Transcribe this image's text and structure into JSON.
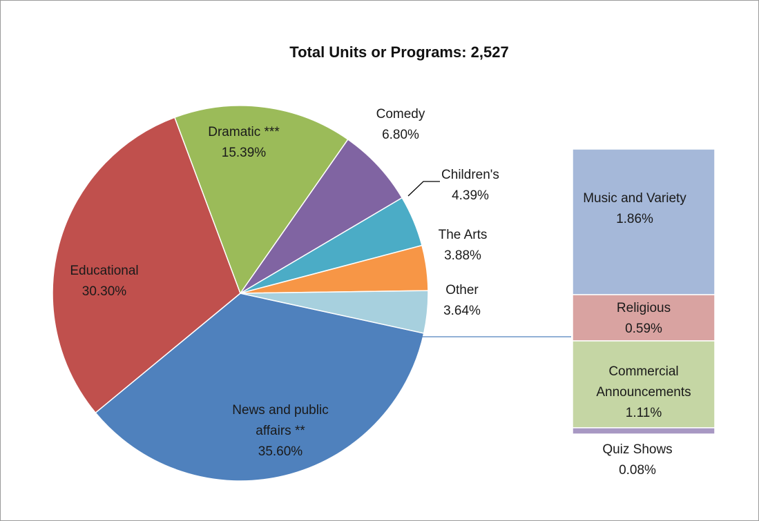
{
  "chart_data": {
    "type": "pie",
    "title": "Total Units or Programs: 2,527",
    "slices": [
      {
        "label": "News and public affairs **",
        "value": 35.6,
        "display": "35.60%",
        "color": "#4F81BD"
      },
      {
        "label": "Educational",
        "value": 30.3,
        "display": "30.30%",
        "color": "#C0504D"
      },
      {
        "label": "Dramatic ***",
        "value": 15.39,
        "display": "15.39%",
        "color": "#9BBB59"
      },
      {
        "label": "Comedy",
        "value": 6.8,
        "display": "6.80%",
        "color": "#8064A2"
      },
      {
        "label": "Children's",
        "value": 4.39,
        "display": "4.39%",
        "color": "#4BACC6"
      },
      {
        "label": "The Arts",
        "value": 3.88,
        "display": "3.88%",
        "color": "#F79646"
      },
      {
        "label": "Other",
        "value": 3.64,
        "display": "3.64%",
        "color": "#A7D0DE"
      }
    ],
    "other_breakdown": [
      {
        "label": "Music and Variety",
        "value": 1.86,
        "display": "1.86%",
        "color": "#A5B8D9"
      },
      {
        "label": "Religious",
        "value": 0.59,
        "display": "0.59%",
        "color": "#D9A3A1"
      },
      {
        "label": "Commercial Announcements",
        "value": 1.11,
        "display": "1.11%",
        "color": "#C5D6A4"
      },
      {
        "label": "Quiz Shows",
        "value": 0.08,
        "display": "0.08%",
        "color": "#A898C3"
      }
    ]
  }
}
